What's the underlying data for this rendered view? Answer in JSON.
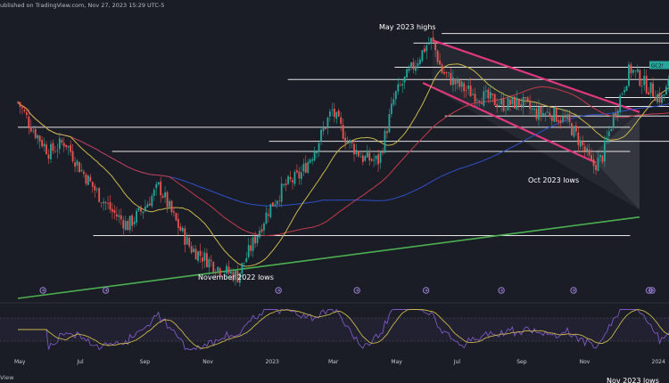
{
  "header": {
    "text": "ublished on TradingView.com, Nov 27, 2023 15:29 UTC-5"
  },
  "footer": {
    "text": "View"
  },
  "colors": {
    "background": "#1a1d26",
    "bull": "#26a69a",
    "bear": "#ef5350",
    "channel": "#e0377e",
    "support_trend": "#4caf50",
    "sma_fast": "#c9b54a",
    "sma_mid": "#c43a4a",
    "sma_slow": "#2f4fc9",
    "rsi": "#7e57c2",
    "rsi_signal": "#c9b54a",
    "level": "#e6e6e6",
    "ticker_bg": "#26a69a"
  },
  "price_label": {
    "text": "GC2!"
  },
  "chart_data": {
    "type": "candlestick",
    "x_labels": [
      "May",
      "Jul",
      "Sep",
      "Nov",
      "2023",
      "Mar",
      "May",
      "Jul",
      "Sep",
      "Nov",
      "2024"
    ],
    "annotations": [
      "May 2023 highs",
      "Nov 2023 lows",
      "November 2022 lows",
      "Oct 2023 lows"
    ],
    "horizontal_levels": [
      2072,
      2055,
      2012,
      1990,
      1958,
      1942,
      1925,
      1905,
      1880,
      1862,
      1712
    ],
    "start_month": "2022-04",
    "end_month": "2024-01",
    "price_path": [
      [
        0,
        1950
      ],
      [
        0.5,
        1900
      ],
      [
        1.0,
        1860
      ],
      [
        1.5,
        1880
      ],
      [
        2.0,
        1830
      ],
      [
        2.5,
        1790
      ],
      [
        3.0,
        1755
      ],
      [
        3.5,
        1730
      ],
      [
        4.0,
        1760
      ],
      [
        4.5,
        1800
      ],
      [
        5.0,
        1740
      ],
      [
        5.5,
        1690
      ],
      [
        6.0,
        1670
      ],
      [
        6.5,
        1650
      ],
      [
        7.0,
        1640
      ],
      [
        7.5,
        1700
      ],
      [
        8.0,
        1760
      ],
      [
        8.5,
        1800
      ],
      [
        9.0,
        1820
      ],
      [
        9.5,
        1870
      ],
      [
        10.0,
        1935
      ],
      [
        10.5,
        1880
      ],
      [
        11.0,
        1850
      ],
      [
        11.5,
        1845
      ],
      [
        12.0,
        1960
      ],
      [
        12.5,
        2005
      ],
      [
        13.0,
        2050
      ],
      [
        13.2,
        2060
      ],
      [
        13.5,
        2005
      ],
      [
        14.0,
        1980
      ],
      [
        14.5,
        1965
      ],
      [
        15.0,
        1955
      ],
      [
        15.5,
        1945
      ],
      [
        16.0,
        1950
      ],
      [
        16.5,
        1930
      ],
      [
        17.0,
        1930
      ],
      [
        17.5,
        1915
      ],
      [
        18.0,
        1870
      ],
      [
        18.3,
        1835
      ],
      [
        18.6,
        1850
      ],
      [
        19.0,
        1930
      ],
      [
        19.5,
        2010
      ],
      [
        20.0,
        1980
      ],
      [
        20.5,
        1955
      ],
      [
        21.0,
        2010
      ]
    ],
    "y_range": [
      1600,
      2100
    ]
  }
}
